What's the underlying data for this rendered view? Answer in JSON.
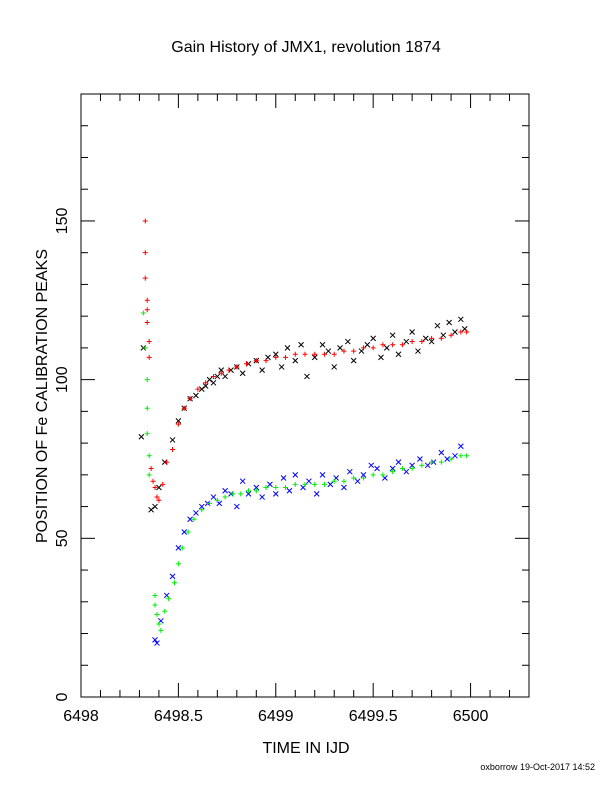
{
  "chart_data": {
    "type": "scatter",
    "title": "Gain History of JMX1, revolution 1874",
    "xlabel": "TIME IN IJD",
    "ylabel": "POSITION OF Fe CALIBRATION PEAKS",
    "xlim": [
      6498,
      6500.3
    ],
    "ylim": [
      0,
      190
    ],
    "xticks": [
      6498,
      6498.5,
      6499,
      6499.5,
      6500
    ],
    "xtick_labels": [
      "6498",
      "6498.5",
      "6499",
      "6499.5",
      "6500"
    ],
    "yticks": [
      0,
      50,
      100,
      150
    ],
    "ytick_labels": [
      "0",
      "50",
      "100",
      "150"
    ],
    "grid": false,
    "legend": "none",
    "footer": "oxborrow 19-Oct-2017 14:52",
    "series": [
      {
        "color": "#000000",
        "marker": "x",
        "points": [
          [
            6498.32,
            110
          ],
          [
            6498.31,
            82
          ],
          [
            6498.36,
            59
          ],
          [
            6498.38,
            60
          ],
          [
            6498.4,
            66
          ],
          [
            6498.43,
            74
          ],
          [
            6498.47,
            81
          ],
          [
            6498.5,
            87
          ],
          [
            6498.53,
            91
          ],
          [
            6498.56,
            94
          ],
          [
            6498.59,
            95
          ],
          [
            6498.62,
            97
          ],
          [
            6498.64,
            98
          ],
          [
            6498.66,
            100
          ],
          [
            6498.68,
            99
          ],
          [
            6498.7,
            101
          ],
          [
            6498.72,
            103
          ],
          [
            6498.74,
            101
          ],
          [
            6498.77,
            103
          ],
          [
            6498.8,
            104
          ],
          [
            6498.83,
            102
          ],
          [
            6498.86,
            105
          ],
          [
            6498.9,
            106
          ],
          [
            6498.93,
            103
          ],
          [
            6498.96,
            107
          ],
          [
            6499.0,
            108
          ],
          [
            6499.03,
            104
          ],
          [
            6499.06,
            110
          ],
          [
            6499.1,
            106
          ],
          [
            6499.13,
            111
          ],
          [
            6499.16,
            101
          ],
          [
            6499.2,
            107
          ],
          [
            6499.24,
            111
          ],
          [
            6499.27,
            109
          ],
          [
            6499.3,
            104
          ],
          [
            6499.33,
            110
          ],
          [
            6499.37,
            112
          ],
          [
            6499.4,
            106
          ],
          [
            6499.44,
            109
          ],
          [
            6499.47,
            111
          ],
          [
            6499.5,
            113
          ],
          [
            6499.54,
            107
          ],
          [
            6499.57,
            110
          ],
          [
            6499.6,
            114
          ],
          [
            6499.63,
            108
          ],
          [
            6499.67,
            112
          ],
          [
            6499.7,
            115
          ],
          [
            6499.73,
            109
          ],
          [
            6499.77,
            113
          ],
          [
            6499.8,
            112
          ],
          [
            6499.83,
            117
          ],
          [
            6499.86,
            114
          ],
          [
            6499.89,
            118
          ],
          [
            6499.92,
            115
          ],
          [
            6499.95,
            119
          ],
          [
            6499.97,
            116
          ]
        ]
      },
      {
        "color": "#ff0000",
        "marker": "+",
        "points": [
          [
            6498.33,
            150
          ],
          [
            6498.33,
            140
          ],
          [
            6498.33,
            132
          ],
          [
            6498.34,
            125
          ],
          [
            6498.34,
            122
          ],
          [
            6498.34,
            118
          ],
          [
            6498.35,
            112
          ],
          [
            6498.35,
            107
          ],
          [
            6498.36,
            72
          ],
          [
            6498.37,
            68
          ],
          [
            6498.38,
            66
          ],
          [
            6498.39,
            63
          ],
          [
            6498.4,
            62
          ],
          [
            6498.42,
            67
          ],
          [
            6498.44,
            74
          ],
          [
            6498.47,
            78
          ],
          [
            6498.5,
            86
          ],
          [
            6498.53,
            91
          ],
          [
            6498.56,
            94
          ],
          [
            6498.6,
            97
          ],
          [
            6498.64,
            99
          ],
          [
            6498.68,
            101
          ],
          [
            6498.72,
            102
          ],
          [
            6498.76,
            103
          ],
          [
            6498.8,
            104
          ],
          [
            6498.85,
            105
          ],
          [
            6498.9,
            106
          ],
          [
            6498.95,
            106
          ],
          [
            6499.0,
            107
          ],
          [
            6499.05,
            107
          ],
          [
            6499.1,
            108
          ],
          [
            6499.15,
            108
          ],
          [
            6499.2,
            108
          ],
          [
            6499.25,
            108
          ],
          [
            6499.3,
            108
          ],
          [
            6499.35,
            109
          ],
          [
            6499.4,
            109
          ],
          [
            6499.45,
            110
          ],
          [
            6499.5,
            110
          ],
          [
            6499.55,
            111
          ],
          [
            6499.6,
            111
          ],
          [
            6499.65,
            111
          ],
          [
            6499.7,
            112
          ],
          [
            6499.75,
            112
          ],
          [
            6499.8,
            113
          ],
          [
            6499.85,
            113
          ],
          [
            6499.9,
            114
          ],
          [
            6499.95,
            115
          ],
          [
            6499.98,
            115
          ]
        ]
      },
      {
        "color": "#0000ff",
        "marker": "x",
        "points": [
          [
            6498.38,
            18
          ],
          [
            6498.39,
            17
          ],
          [
            6498.41,
            24
          ],
          [
            6498.44,
            32
          ],
          [
            6498.47,
            38
          ],
          [
            6498.5,
            47
          ],
          [
            6498.53,
            52
          ],
          [
            6498.56,
            56
          ],
          [
            6498.59,
            58
          ],
          [
            6498.62,
            60
          ],
          [
            6498.65,
            61
          ],
          [
            6498.68,
            63
          ],
          [
            6498.71,
            61
          ],
          [
            6498.74,
            65
          ],
          [
            6498.77,
            64
          ],
          [
            6498.8,
            60
          ],
          [
            6498.83,
            68
          ],
          [
            6498.86,
            64
          ],
          [
            6498.9,
            66
          ],
          [
            6498.93,
            63
          ],
          [
            6498.97,
            67
          ],
          [
            6499.0,
            64
          ],
          [
            6499.04,
            69
          ],
          [
            6499.07,
            65
          ],
          [
            6499.1,
            70
          ],
          [
            6499.14,
            66
          ],
          [
            6499.17,
            68
          ],
          [
            6499.21,
            64
          ],
          [
            6499.24,
            70
          ],
          [
            6499.28,
            67
          ],
          [
            6499.31,
            69
          ],
          [
            6499.35,
            66
          ],
          [
            6499.38,
            71
          ],
          [
            6499.42,
            68
          ],
          [
            6499.45,
            70
          ],
          [
            6499.49,
            73
          ],
          [
            6499.52,
            72
          ],
          [
            6499.56,
            69
          ],
          [
            6499.6,
            72
          ],
          [
            6499.63,
            74
          ],
          [
            6499.67,
            71
          ],
          [
            6499.7,
            73
          ],
          [
            6499.74,
            75
          ],
          [
            6499.78,
            73
          ],
          [
            6499.81,
            74
          ],
          [
            6499.85,
            77
          ],
          [
            6499.88,
            75
          ],
          [
            6499.92,
            76
          ],
          [
            6499.95,
            79
          ]
        ]
      },
      {
        "color": "#00ee00",
        "marker": "+",
        "points": [
          [
            6498.32,
            121
          ],
          [
            6498.33,
            110
          ],
          [
            6498.34,
            100
          ],
          [
            6498.34,
            91
          ],
          [
            6498.34,
            83
          ],
          [
            6498.35,
            76
          ],
          [
            6498.35,
            70
          ],
          [
            6498.38,
            32
          ],
          [
            6498.38,
            29
          ],
          [
            6498.39,
            26
          ],
          [
            6498.4,
            23
          ],
          [
            6498.41,
            21
          ],
          [
            6498.43,
            27
          ],
          [
            6498.45,
            31
          ],
          [
            6498.48,
            36
          ],
          [
            6498.5,
            42
          ],
          [
            6498.52,
            47
          ],
          [
            6498.55,
            52
          ],
          [
            6498.58,
            56
          ],
          [
            6498.62,
            59
          ],
          [
            6498.66,
            61
          ],
          [
            6498.7,
            62
          ],
          [
            6498.74,
            63
          ],
          [
            6498.78,
            64
          ],
          [
            6498.82,
            64
          ],
          [
            6498.86,
            65
          ],
          [
            6498.9,
            65
          ],
          [
            6498.95,
            66
          ],
          [
            6499.0,
            66
          ],
          [
            6499.05,
            66
          ],
          [
            6499.1,
            67
          ],
          [
            6499.15,
            67
          ],
          [
            6499.2,
            67
          ],
          [
            6499.25,
            67
          ],
          [
            6499.3,
            68
          ],
          [
            6499.35,
            68
          ],
          [
            6499.4,
            69
          ],
          [
            6499.45,
            69
          ],
          [
            6499.5,
            70
          ],
          [
            6499.55,
            70
          ],
          [
            6499.6,
            71
          ],
          [
            6499.65,
            72
          ],
          [
            6499.7,
            72
          ],
          [
            6499.75,
            73
          ],
          [
            6499.8,
            74
          ],
          [
            6499.85,
            74
          ],
          [
            6499.9,
            75
          ],
          [
            6499.95,
            76
          ],
          [
            6499.98,
            76
          ]
        ]
      }
    ]
  }
}
